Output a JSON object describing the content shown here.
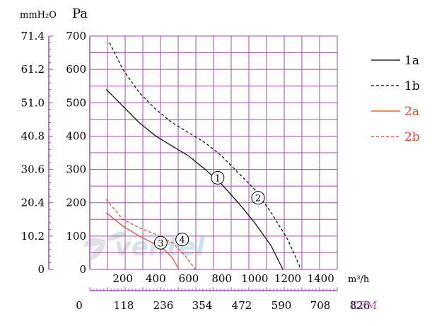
{
  "chart_data": {
    "type": "line",
    "title": "",
    "left_axis": {
      "unit_label": "mmH₂O",
      "ticks": [
        "71.4",
        "61.2",
        "51.0",
        "40.8",
        "30.6",
        "20.4",
        "10.2",
        "0"
      ]
    },
    "pa_axis": {
      "unit_label": "Pa",
      "ticks": [
        0,
        100,
        200,
        300,
        400,
        500,
        600,
        700
      ],
      "ylim": [
        0,
        700
      ]
    },
    "flow_axis": {
      "unit_label": "m³/h",
      "ticks": [
        200,
        400,
        600,
        800,
        1000,
        1200,
        1400
      ],
      "xlim": [
        0,
        1500
      ]
    },
    "cfm_axis": {
      "unit_label": "CFM",
      "ticks": [
        "0",
        "118",
        "236",
        "354",
        "472",
        "590",
        "708",
        "826"
      ]
    },
    "watermark": "ventel",
    "series": [
      {
        "name": "1a",
        "color": "#000000",
        "dash": "solid",
        "marker": "1",
        "marker_at": {
          "x": 775,
          "y": 275
        },
        "points": [
          [
            100,
            540
          ],
          [
            200,
            490
          ],
          [
            300,
            440
          ],
          [
            400,
            400
          ],
          [
            500,
            370
          ],
          [
            600,
            340
          ],
          [
            700,
            300
          ],
          [
            800,
            255
          ],
          [
            900,
            200
          ],
          [
            1000,
            140
          ],
          [
            1100,
            70
          ],
          [
            1170,
            0
          ]
        ]
      },
      {
        "name": "1b",
        "color": "#000000",
        "dash": "dashed",
        "marker": "2",
        "marker_at": {
          "x": 1020,
          "y": 215
        },
        "points": [
          [
            120,
            680
          ],
          [
            200,
            600
          ],
          [
            300,
            530
          ],
          [
            400,
            480
          ],
          [
            500,
            440
          ],
          [
            600,
            410
          ],
          [
            700,
            380
          ],
          [
            800,
            340
          ],
          [
            900,
            290
          ],
          [
            1000,
            240
          ],
          [
            1100,
            170
          ],
          [
            1200,
            90
          ],
          [
            1280,
            0
          ]
        ]
      },
      {
        "name": "2a",
        "color": "#e8402a",
        "dash": "solid",
        "marker": "3",
        "marker_at": {
          "x": 430,
          "y": 80
        },
        "points": [
          [
            100,
            170
          ],
          [
            200,
            130
          ],
          [
            300,
            100
          ],
          [
            400,
            75
          ],
          [
            450,
            60
          ],
          [
            500,
            35
          ],
          [
            540,
            0
          ]
        ]
      },
      {
        "name": "2b",
        "color": "#e8402a",
        "dash": "dashed",
        "marker": "4",
        "marker_at": {
          "x": 560,
          "y": 90
        },
        "points": [
          [
            100,
            210
          ],
          [
            200,
            150
          ],
          [
            300,
            125
          ],
          [
            400,
            105
          ],
          [
            500,
            80
          ],
          [
            580,
            40
          ],
          [
            640,
            0
          ]
        ]
      }
    ],
    "grid": true,
    "legend_position": "right"
  }
}
